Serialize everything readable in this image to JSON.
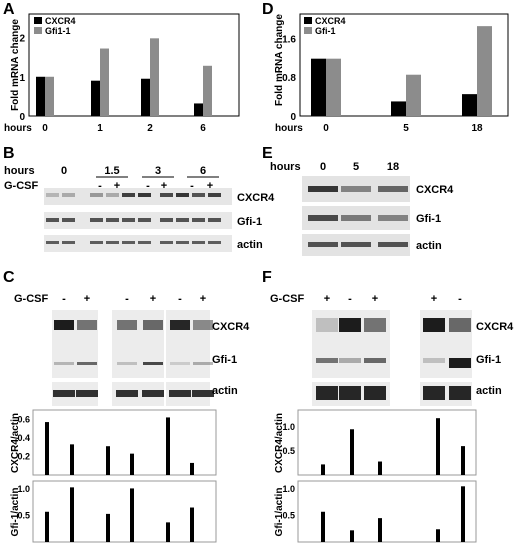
{
  "panels": {
    "A": "A",
    "B": "B",
    "C": "C",
    "D": "D",
    "E": "E",
    "F": "F"
  },
  "chart_data": [
    {
      "id": "A",
      "type": "bar",
      "ylabel": "Fold mRNA change",
      "xlabel_prefix": "hours",
      "categories": [
        "0",
        "1",
        "2",
        "6"
      ],
      "yticks": [
        "0",
        "1",
        "2"
      ],
      "ylim": [
        0,
        2.6
      ],
      "series": [
        {
          "name": "CXCR4",
          "color": "#000000",
          "values": [
            1.0,
            0.9,
            0.95,
            0.32
          ]
        },
        {
          "name": "Gfi1-1",
          "color": "#8c8c8c",
          "values": [
            1.0,
            1.72,
            1.98,
            1.28
          ]
        }
      ]
    },
    {
      "id": "D",
      "type": "bar",
      "ylabel": "Fold mRNA change",
      "xlabel_prefix": "hours",
      "categories": [
        "0",
        "5",
        "18"
      ],
      "yticks": [
        "0",
        "0.8",
        "1.6"
      ],
      "ylim": [
        0,
        2.1
      ],
      "series": [
        {
          "name": "CXCR4",
          "color": "#000000",
          "values": [
            1.18,
            0.3,
            0.45
          ]
        },
        {
          "name": "Gfi-1",
          "color": "#8c8c8c",
          "values": [
            1.18,
            0.85,
            1.85
          ]
        }
      ]
    },
    {
      "id": "C-cxcr4",
      "type": "bar",
      "ylabel": "CXCR4/actin",
      "yticks": [
        "0.2",
        "0.4",
        "0.6"
      ],
      "ylim": [
        0,
        0.7
      ],
      "values": [
        0.57,
        0.33,
        0.31,
        0.23,
        0.62,
        0.13
      ]
    },
    {
      "id": "C-gfi1",
      "type": "bar",
      "ylabel": "Gfi-1/actin",
      "yticks": [
        "0.5",
        "1.0"
      ],
      "ylim": [
        0,
        1.15
      ],
      "values": [
        0.57,
        1.03,
        0.53,
        1.01,
        0.37,
        0.65
      ]
    },
    {
      "id": "F-cxcr4",
      "type": "bar",
      "ylabel": "CXCR4/actin",
      "yticks": [
        "0.5",
        "1.0"
      ],
      "ylim": [
        0,
        1.35
      ],
      "values": [
        0.22,
        0.95,
        0.28,
        1.18,
        0.6
      ]
    },
    {
      "id": "F-gfi1",
      "type": "bar",
      "ylabel": "Gfi-1/actin",
      "yticks": [
        "0.5",
        "1.0"
      ],
      "ylim": [
        0,
        1.15
      ],
      "values": [
        0.57,
        0.22,
        0.45,
        0.24,
        1.05
      ]
    }
  ],
  "blots": {
    "B": {
      "hours_label": "hours",
      "hours": [
        "0",
        "1.5",
        "3",
        "6"
      ],
      "gcsf_label": "G-CSF",
      "signs": [
        "-",
        "+",
        "-",
        "+",
        "-",
        "+"
      ],
      "rows": [
        "CXCR4",
        "Gfi-1",
        "actin"
      ]
    },
    "E": {
      "hours_label": "hours",
      "hours": [
        "0",
        "5",
        "18"
      ],
      "rows": [
        "CXCR4",
        "Gfi-1",
        "actin"
      ]
    },
    "C": {
      "gcsf_label": "G-CSF",
      "signs": [
        "-",
        "+",
        "-",
        "+",
        "-",
        "+"
      ],
      "rows": [
        "CXCR4",
        "Gfi-1",
        "actin"
      ]
    },
    "F": {
      "gcsf_label": "G-CSF",
      "signs": [
        "+",
        "-",
        "+",
        "+",
        "-"
      ],
      "rows": [
        "CXCR4",
        "Gfi-1",
        "actin"
      ]
    }
  }
}
